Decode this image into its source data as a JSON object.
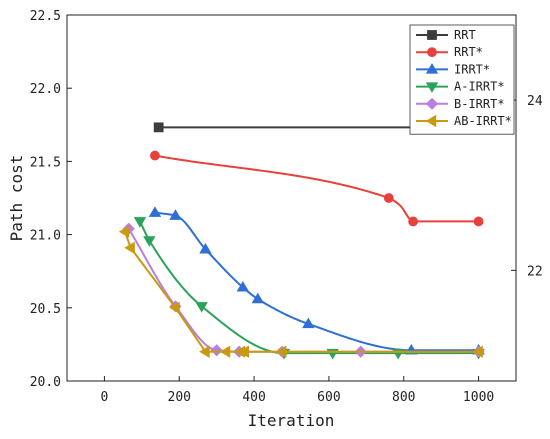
{
  "chart_data": {
    "type": "line",
    "xlabel": "Iteration",
    "ylabel": "Path cost",
    "xlim": [
      -100,
      1100
    ],
    "ylim": [
      20.0,
      22.5
    ],
    "y2lim": [
      20.7,
      25.0
    ],
    "xticks": [
      0,
      200,
      400,
      600,
      800,
      1000
    ],
    "yticks": [
      20.0,
      20.5,
      21.0,
      21.5,
      22.0,
      22.5
    ],
    "ytick_labels": [
      "20.0",
      "20.5",
      "21.0",
      "21.5",
      "22.0",
      "22.5"
    ],
    "y2ticks": [
      22,
      24
    ],
    "y2tick_labels": [
      "22",
      "24"
    ],
    "legend_position": "top-right",
    "grid": false,
    "series": [
      {
        "name": "RRT",
        "color": "#3d3d3d",
        "marker": "square",
        "axis": "right",
        "curve": "linear",
        "x": [
          145,
          1000
        ],
        "y": [
          23.68,
          23.68
        ],
        "marker_x": [
          145,
          1000
        ]
      },
      {
        "name": "RRT*",
        "color": "#e8403c",
        "marker": "circle",
        "axis": "left",
        "curve": "smooth",
        "x": [
          135,
          760,
          790,
          825,
          1000
        ],
        "y": [
          21.54,
          21.25,
          21.2,
          21.09,
          21.09
        ],
        "marker_x": [
          135,
          760,
          825,
          1000
        ]
      },
      {
        "name": "IRRT*",
        "color": "#2f6fd6",
        "marker": "triangle-up",
        "axis": "left",
        "curve": "smooth",
        "x": [
          135,
          190,
          270,
          370,
          410,
          545,
          820,
          1000
        ],
        "y": [
          21.15,
          21.13,
          20.9,
          20.64,
          20.56,
          20.39,
          20.21,
          20.21
        ],
        "marker_x": [
          135,
          190,
          270,
          370,
          410,
          545,
          820,
          1000
        ]
      },
      {
        "name": "A-IRRT*",
        "color": "#2aa35a",
        "marker": "triangle-down",
        "axis": "left",
        "curve": "smooth",
        "x": [
          95,
          120,
          260,
          480,
          610,
          785,
          1000
        ],
        "y": [
          21.09,
          20.96,
          20.51,
          20.19,
          20.19,
          20.19,
          20.19
        ],
        "marker_x": [
          95,
          120,
          260,
          480,
          610,
          785,
          1000
        ]
      },
      {
        "name": "B-IRRT*",
        "color": "#b87fe0",
        "marker": "diamond",
        "axis": "left",
        "curve": "smooth",
        "x": [
          65,
          190,
          300,
          360,
          475,
          685,
          1000
        ],
        "y": [
          21.04,
          20.51,
          20.21,
          20.2,
          20.2,
          20.2,
          20.2
        ],
        "marker_x": [
          65,
          190,
          300,
          360,
          475,
          685,
          1000
        ]
      },
      {
        "name": "AB-IRRT*",
        "color": "#c89a10",
        "marker": "triangle-left",
        "axis": "left",
        "curve": "linear",
        "x": [
          55,
          70,
          190,
          270,
          325,
          365,
          375,
          475,
          1000
        ],
        "y": [
          21.02,
          20.91,
          20.5,
          20.2,
          20.2,
          20.2,
          20.2,
          20.2,
          20.2
        ],
        "marker_x": [
          55,
          70,
          190,
          270,
          325,
          365,
          375,
          475,
          1000
        ]
      }
    ]
  }
}
